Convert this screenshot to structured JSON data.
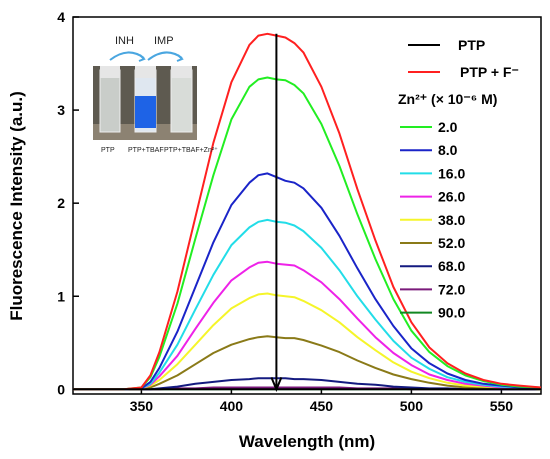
{
  "chart_data": {
    "type": "line",
    "xlabel": "Wavelength (nm)",
    "ylabel": "Fluorescence Intensity (a.u.)",
    "xlim": [
      312,
      572
    ],
    "ylim": [
      -0.05,
      4.0
    ],
    "xticks": [
      "350",
      "400",
      "450",
      "500",
      "550"
    ],
    "yticks": [
      "0",
      "1",
      "2",
      "3",
      "4"
    ],
    "x": [
      312,
      340,
      350,
      355,
      360,
      370,
      380,
      390,
      400,
      410,
      415,
      420,
      425,
      430,
      435,
      440,
      450,
      460,
      470,
      480,
      490,
      500,
      510,
      520,
      530,
      540,
      550,
      560,
      572
    ],
    "legend_title": "Zn²⁺ (× 10⁻⁶ M)",
    "series": [
      {
        "name": "PTP",
        "color": "#000000",
        "values": [
          0,
          0,
          0,
          0,
          0,
          0,
          0,
          0,
          0,
          0,
          0,
          0,
          0,
          0,
          0,
          0,
          0,
          0,
          0,
          0,
          0,
          0,
          0,
          0,
          0,
          0,
          0,
          0,
          0
        ]
      },
      {
        "name": "PTP + F⁻",
        "color": "#ff2020",
        "values": [
          0,
          0,
          0.02,
          0.15,
          0.4,
          1.05,
          1.85,
          2.65,
          3.3,
          3.7,
          3.8,
          3.82,
          3.8,
          3.78,
          3.72,
          3.62,
          3.25,
          2.75,
          2.15,
          1.6,
          1.1,
          0.72,
          0.45,
          0.28,
          0.17,
          0.1,
          0.06,
          0.04,
          0.02
        ]
      },
      {
        "name": "2.0",
        "color": "#22ee22",
        "values": [
          0,
          0,
          0.02,
          0.13,
          0.35,
          0.92,
          1.62,
          2.3,
          2.9,
          3.25,
          3.33,
          3.35,
          3.33,
          3.32,
          3.27,
          3.18,
          2.85,
          2.4,
          1.88,
          1.4,
          0.97,
          0.63,
          0.4,
          0.25,
          0.15,
          0.09,
          0.05,
          0.03,
          0.02
        ]
      },
      {
        "name": "8.0",
        "color": "#1a24c8",
        "values": [
          0,
          0,
          0.01,
          0.08,
          0.23,
          0.62,
          1.1,
          1.58,
          1.98,
          2.22,
          2.3,
          2.32,
          2.28,
          2.24,
          2.22,
          2.16,
          1.95,
          1.65,
          1.3,
          0.97,
          0.68,
          0.44,
          0.28,
          0.17,
          0.1,
          0.06,
          0.04,
          0.02,
          0.01
        ]
      },
      {
        "name": "16.0",
        "color": "#22dde8",
        "values": [
          0,
          0,
          0.01,
          0.06,
          0.18,
          0.48,
          0.86,
          1.23,
          1.55,
          1.74,
          1.8,
          1.82,
          1.8,
          1.79,
          1.76,
          1.7,
          1.52,
          1.28,
          1.0,
          0.75,
          0.52,
          0.34,
          0.22,
          0.13,
          0.08,
          0.05,
          0.03,
          0.02,
          0.01
        ]
      },
      {
        "name": "26.0",
        "color": "#ee22e8",
        "values": [
          0,
          0,
          0.01,
          0.05,
          0.14,
          0.36,
          0.65,
          0.93,
          1.17,
          1.31,
          1.36,
          1.37,
          1.35,
          1.34,
          1.33,
          1.28,
          1.15,
          0.97,
          0.76,
          0.56,
          0.39,
          0.26,
          0.16,
          0.1,
          0.06,
          0.04,
          0.02,
          0.01,
          0.01
        ]
      },
      {
        "name": "38.0",
        "color": "#f5f52a",
        "values": [
          0,
          0,
          0.01,
          0.04,
          0.1,
          0.27,
          0.48,
          0.69,
          0.87,
          0.98,
          1.02,
          1.03,
          1.01,
          1.0,
          0.99,
          0.95,
          0.85,
          0.72,
          0.56,
          0.42,
          0.29,
          0.19,
          0.12,
          0.07,
          0.04,
          0.03,
          0.02,
          0.01,
          0.0
        ]
      },
      {
        "name": "52.0",
        "color": "#8a7a18",
        "values": [
          0,
          0,
          0,
          0.02,
          0.06,
          0.15,
          0.27,
          0.39,
          0.48,
          0.54,
          0.56,
          0.57,
          0.56,
          0.55,
          0.55,
          0.53,
          0.47,
          0.4,
          0.31,
          0.23,
          0.16,
          0.11,
          0.07,
          0.04,
          0.02,
          0.02,
          0.01,
          0.01,
          0.0
        ]
      },
      {
        "name": "68.0",
        "color": "#141a80",
        "values": [
          0,
          0,
          0,
          0,
          0.01,
          0.03,
          0.06,
          0.08,
          0.1,
          0.11,
          0.12,
          0.12,
          0.12,
          0.12,
          0.11,
          0.11,
          0.1,
          0.08,
          0.06,
          0.05,
          0.03,
          0.02,
          0.01,
          0.01,
          0,
          0,
          0,
          0,
          0
        ]
      },
      {
        "name": "72.0",
        "color": "#7a1a7a",
        "values": [
          0,
          0,
          0,
          0,
          0,
          0.01,
          0.01,
          0.02,
          0.02,
          0.02,
          0.02,
          0.02,
          0.02,
          0.02,
          0.02,
          0.02,
          0.02,
          0.02,
          0.01,
          0.01,
          0.01,
          0,
          0,
          0,
          0,
          0,
          0,
          0,
          0
        ]
      },
      {
        "name": "90.0",
        "color": "#118822",
        "values": [
          0,
          0,
          0,
          0,
          0,
          0,
          0,
          0,
          0,
          0,
          0,
          0,
          0,
          0,
          0,
          0,
          0,
          0,
          0,
          0,
          0,
          0,
          0,
          0,
          0,
          0,
          0,
          0,
          0
        ]
      }
    ],
    "annotations": [
      {
        "type": "arrow",
        "x": 425,
        "from": 3.82,
        "to": 0,
        "direction": "down"
      }
    ]
  },
  "inset": {
    "arrow_labels": [
      "INH",
      "IMP"
    ],
    "vial_labels": [
      "PTP",
      "PTP+TBAF",
      "PTP+TBAF+Zn²⁺"
    ]
  }
}
